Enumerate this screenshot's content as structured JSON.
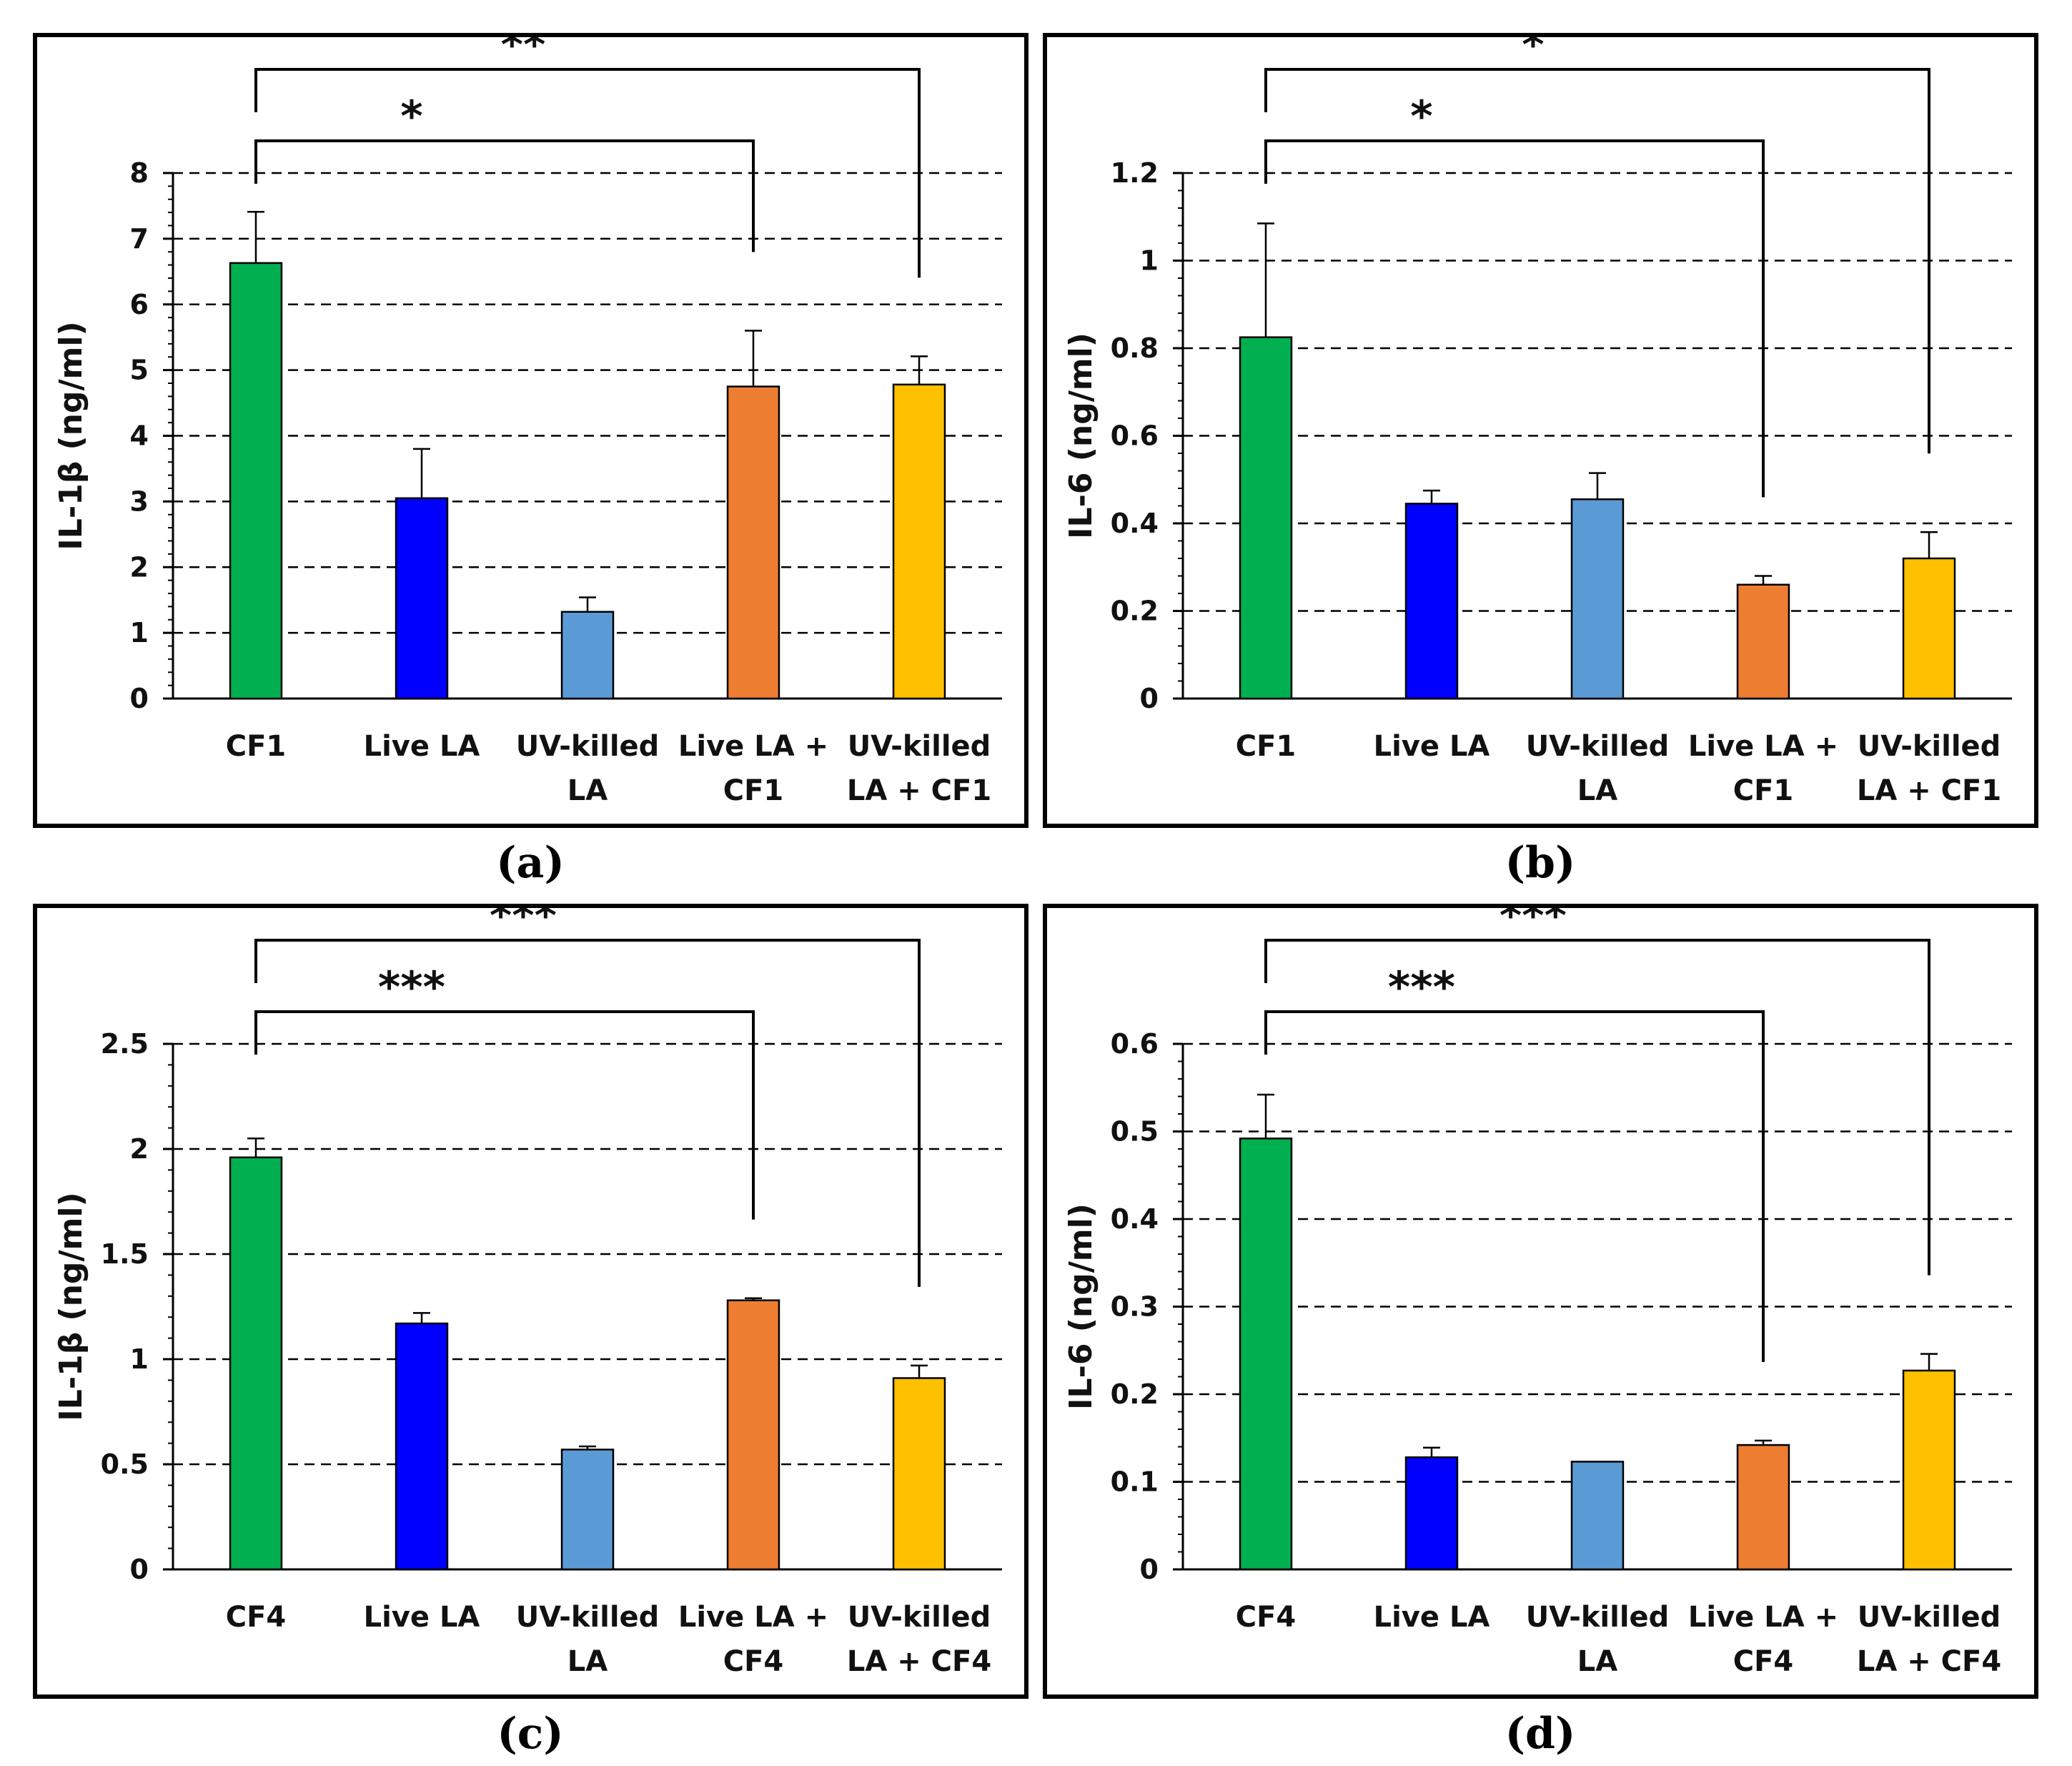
{
  "colors": {
    "CF": "#00B050",
    "LiveLA": "#0000FF",
    "UVkilledLA": "#5B9BD5",
    "LiveLA_CF": "#ED7D31",
    "UVkilledLA_CF": "#FFC000"
  },
  "chart_data": [
    {
      "type": "bar",
      "caption": "(a)",
      "ylabel": "IL-1β (ng/ml)",
      "ylim": [
        0,
        8
      ],
      "yticks": [
        "0",
        "1",
        "2",
        "3",
        "4",
        "5",
        "6",
        "7",
        "8"
      ],
      "grid": true,
      "categories": [
        [
          "CF1"
        ],
        [
          "Live LA"
        ],
        [
          "UV-killed",
          "LA"
        ],
        [
          "Live LA +",
          "CF1"
        ],
        [
          "UV-killed",
          "LA + CF1"
        ]
      ],
      "values": [
        6.63,
        3.05,
        1.32,
        4.75,
        4.78
      ],
      "errors": [
        0.78,
        0.75,
        0.22,
        0.85,
        0.43
      ],
      "bar_colors": [
        "#00B050",
        "#0000FF",
        "#5B9BD5",
        "#ED7D31",
        "#FFC000"
      ],
      "significance": [
        {
          "from": 0,
          "to": 3,
          "label": "*"
        },
        {
          "from": 0,
          "to": 4,
          "label": "**"
        }
      ]
    },
    {
      "type": "bar",
      "caption": "(b)",
      "ylabel": "IL-6 (ng/ml)",
      "ylim": [
        0,
        1.2
      ],
      "yticks": [
        "0",
        "0.2",
        "0.4",
        "0.6",
        "0.8",
        "1",
        "1.2"
      ],
      "grid": true,
      "categories": [
        [
          "CF1"
        ],
        [
          "Live LA"
        ],
        [
          "UV-killed",
          "LA"
        ],
        [
          "Live LA +",
          "CF1"
        ],
        [
          "UV-killed",
          "LA + CF1"
        ]
      ],
      "values": [
        0.825,
        0.445,
        0.455,
        0.26,
        0.32
      ],
      "errors": [
        0.26,
        0.03,
        0.06,
        0.02,
        0.06
      ],
      "bar_colors": [
        "#00B050",
        "#0000FF",
        "#5B9BD5",
        "#ED7D31",
        "#FFC000"
      ],
      "significance": [
        {
          "from": 0,
          "to": 3,
          "label": "*"
        },
        {
          "from": 0,
          "to": 4,
          "label": "*"
        }
      ]
    },
    {
      "type": "bar",
      "caption": "(c)",
      "ylabel": "IL-1β (ng/ml)",
      "ylim": [
        0,
        2.5
      ],
      "yticks": [
        "0",
        "0.5",
        "1",
        "1.5",
        "2",
        "2.5"
      ],
      "grid": true,
      "categories": [
        [
          "CF4"
        ],
        [
          "Live LA"
        ],
        [
          "UV-killed",
          "LA"
        ],
        [
          "Live LA +",
          "CF4"
        ],
        [
          "UV-killed",
          "LA + CF4"
        ]
      ],
      "values": [
        1.96,
        1.17,
        0.57,
        1.28,
        0.91
      ],
      "errors": [
        0.09,
        0.05,
        0.015,
        0.01,
        0.06
      ],
      "bar_colors": [
        "#00B050",
        "#0000FF",
        "#5B9BD5",
        "#ED7D31",
        "#FFC000"
      ],
      "significance": [
        {
          "from": 0,
          "to": 3,
          "label": "***"
        },
        {
          "from": 0,
          "to": 4,
          "label": "***"
        }
      ]
    },
    {
      "type": "bar",
      "caption": "(d)",
      "ylabel": "IL-6 (ng/ml)",
      "ylim": [
        0,
        0.6
      ],
      "yticks": [
        "0",
        "0.1",
        "0.2",
        "0.3",
        "0.4",
        "0.5",
        "0.6"
      ],
      "grid": true,
      "categories": [
        [
          "CF4"
        ],
        [
          "Live LA"
        ],
        [
          "UV-killed",
          "LA"
        ],
        [
          "Live LA +",
          "CF4"
        ],
        [
          "UV-killed",
          "LA + CF4"
        ]
      ],
      "values": [
        0.492,
        0.128,
        0.123,
        0.142,
        0.227
      ],
      "errors": [
        0.05,
        0.011,
        0.0,
        0.005,
        0.019
      ],
      "bar_colors": [
        "#00B050",
        "#0000FF",
        "#5B9BD5",
        "#ED7D31",
        "#FFC000"
      ],
      "significance": [
        {
          "from": 0,
          "to": 3,
          "label": "***"
        },
        {
          "from": 0,
          "to": 4,
          "label": "***"
        }
      ]
    }
  ]
}
